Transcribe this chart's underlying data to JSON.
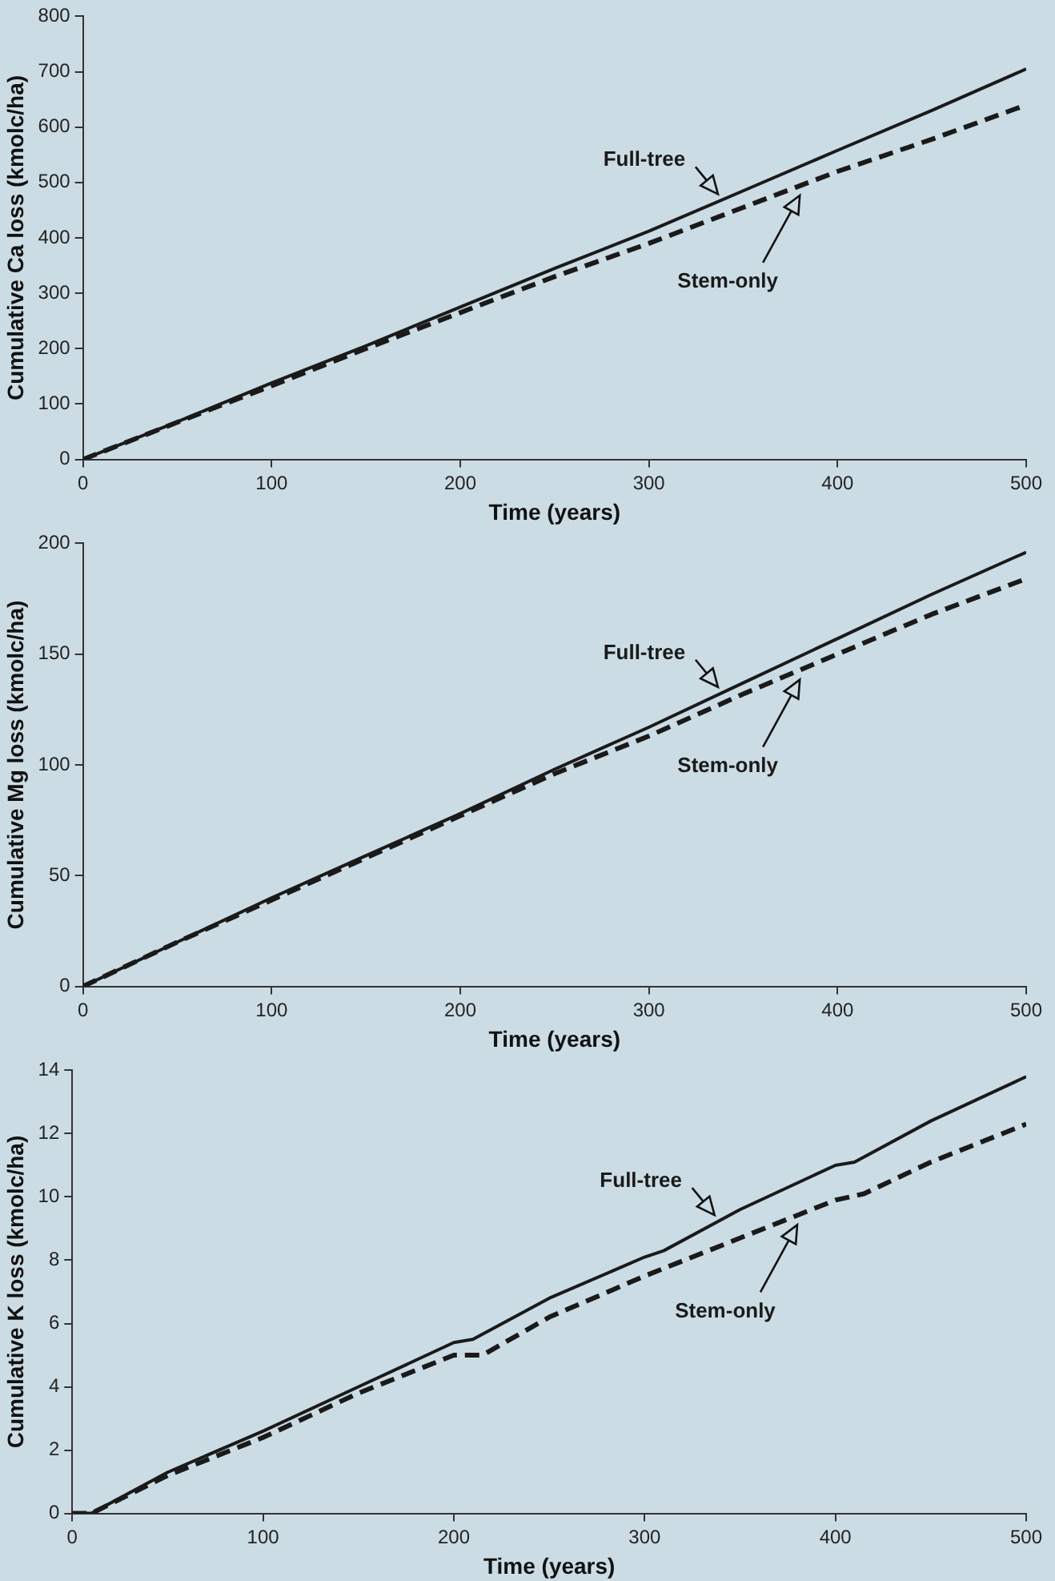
{
  "chart_data": [
    {
      "type": "line",
      "xlabel": "Time (years)",
      "ylabel": "Cumulative Ca loss (kmolc/ha)",
      "xlim": [
        0,
        500
      ],
      "xticks": [
        0,
        100,
        200,
        300,
        400,
        500
      ],
      "ylim": [
        0,
        800
      ],
      "yticks": [
        0,
        100,
        200,
        300,
        400,
        500,
        600,
        700,
        800
      ],
      "grid": false,
      "legend": false,
      "marker": "none",
      "series": [
        {
          "name": "Full-tree",
          "color": "#1a1a1a",
          "line_style": "solid",
          "x": [
            0,
            50,
            100,
            150,
            200,
            250,
            300,
            350,
            400,
            450,
            500
          ],
          "values": [
            0,
            68,
            138,
            205,
            275,
            345,
            412,
            485,
            558,
            630,
            705
          ]
        },
        {
          "name": "Stem-only",
          "color": "#1a1a1a",
          "line_style": "dashed",
          "x": [
            0,
            50,
            100,
            150,
            200,
            250,
            300,
            350,
            400,
            450,
            500
          ],
          "values": [
            0,
            67,
            133,
            200,
            265,
            330,
            390,
            455,
            520,
            578,
            640
          ]
        }
      ]
    },
    {
      "type": "line",
      "xlabel": "Time (years)",
      "ylabel": "Cumulative Mg loss (kmolc/ha)",
      "xlim": [
        0,
        500
      ],
      "xticks": [
        0,
        100,
        200,
        300,
        400,
        500
      ],
      "ylim": [
        0,
        200
      ],
      "yticks": [
        0,
        50,
        100,
        150,
        200
      ],
      "grid": false,
      "legend": false,
      "marker": "none",
      "series": [
        {
          "name": "Full-tree",
          "color": "#1a1a1a",
          "line_style": "solid",
          "x": [
            0,
            50,
            100,
            150,
            200,
            250,
            300,
            350,
            400,
            450,
            500
          ],
          "values": [
            0,
            20,
            40,
            59,
            78,
            98,
            117,
            137,
            157,
            177,
            196
          ]
        },
        {
          "name": "Stem-only",
          "color": "#1a1a1a",
          "line_style": "dashed",
          "x": [
            0,
            50,
            100,
            150,
            200,
            250,
            300,
            350,
            400,
            450,
            500
          ],
          "values": [
            0,
            20,
            39,
            58,
            77,
            96,
            113,
            132,
            150,
            168,
            184
          ]
        }
      ]
    },
    {
      "type": "line",
      "xlabel": "Time (years)",
      "ylabel": "Cumulative K loss (kmolc/ha)",
      "xlim": [
        0,
        500
      ],
      "xticks": [
        0,
        100,
        200,
        300,
        400,
        500
      ],
      "ylim": [
        0,
        14
      ],
      "yticks": [
        0,
        2,
        4,
        6,
        8,
        10,
        12,
        14
      ],
      "grid": false,
      "legend": false,
      "marker": "none",
      "series": [
        {
          "name": "Full-tree",
          "color": "#1a1a1a",
          "line_style": "solid",
          "x": [
            0,
            10,
            50,
            100,
            150,
            200,
            210,
            250,
            300,
            310,
            350,
            400,
            410,
            450,
            500
          ],
          "values": [
            0,
            0,
            1.3,
            2.6,
            4.0,
            5.4,
            5.5,
            6.8,
            8.1,
            8.3,
            9.6,
            11.0,
            11.1,
            12.4,
            13.8
          ]
        },
        {
          "name": "Stem-only",
          "color": "#1a1a1a",
          "line_style": "dashed",
          "x": [
            0,
            10,
            50,
            100,
            150,
            200,
            215,
            250,
            300,
            350,
            400,
            415,
            450,
            500
          ],
          "values": [
            0,
            0,
            1.2,
            2.4,
            3.8,
            5.0,
            5.0,
            6.2,
            7.5,
            8.7,
            9.9,
            10.1,
            11.1,
            12.3
          ]
        }
      ]
    }
  ]
}
